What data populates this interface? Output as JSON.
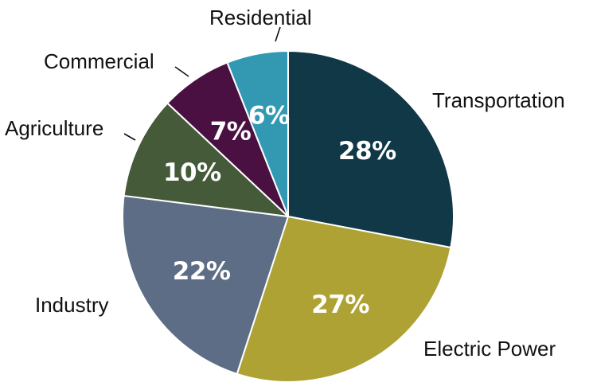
{
  "chart_data": {
    "type": "pie",
    "title": "",
    "slices": [
      {
        "label": "Transportation",
        "value": 28,
        "display": "28%",
        "color": "#113847"
      },
      {
        "label": "Electric Power",
        "value": 27,
        "display": "27%",
        "color": "#AFA234"
      },
      {
        "label": "Industry",
        "value": 22,
        "display": "22%",
        "color": "#5D6D85"
      },
      {
        "label": "Agriculture",
        "value": 10,
        "display": "10%",
        "color": "#445A38"
      },
      {
        "label": "Commercial",
        "value": 7,
        "display": "7%",
        "color": "#4B1042"
      },
      {
        "label": "Residential",
        "value": 6,
        "display": "6%",
        "color": "#3399B3"
      }
    ],
    "start": "12 o'clock",
    "direction": "clockwise",
    "slice_label_color": "#FFFFFF",
    "slice_border_color": "#FFFFFF"
  }
}
